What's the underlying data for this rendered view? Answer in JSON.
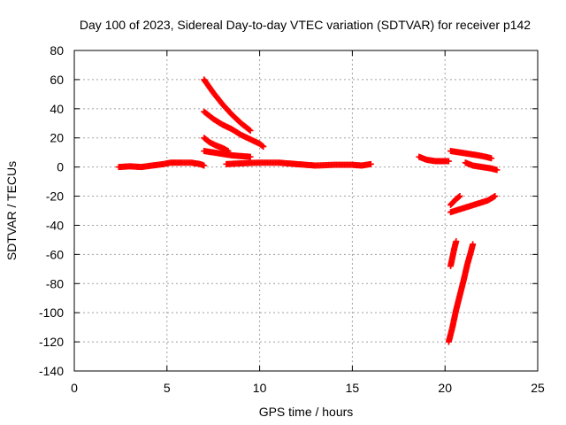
{
  "chart_data": {
    "type": "scatter",
    "title": "Day 100 of 2023, Sidereal Day-to-day VTEC variation (SDTVAR) for receiver p142",
    "xlabel": "GPS time / hours",
    "ylabel": "SDTVAR / TECUs",
    "xlim": [
      0,
      25
    ],
    "ylim": [
      -140,
      80
    ],
    "xticks": [
      0,
      5,
      10,
      15,
      20,
      25
    ],
    "yticks": [
      -140,
      -120,
      -100,
      -80,
      -60,
      -40,
      -20,
      0,
      20,
      40,
      60,
      80
    ],
    "grid": true,
    "legend": "none",
    "marker": "plus",
    "color": "#ff0000",
    "series": [
      {
        "points": [
          [
            2.4,
            0
          ],
          [
            3.0,
            0.5
          ],
          [
            3.6,
            0
          ],
          [
            4.2,
            1
          ],
          [
            4.8,
            2
          ],
          [
            5.2,
            3
          ],
          [
            5.8,
            3
          ],
          [
            6.3,
            3
          ],
          [
            6.8,
            2
          ],
          [
            7.0,
            1
          ]
        ]
      },
      {
        "points": [
          [
            7.0,
            60
          ],
          [
            7.5,
            51
          ],
          [
            8.0,
            43
          ],
          [
            8.5,
            36
          ],
          [
            9.0,
            30
          ],
          [
            9.5,
            25
          ]
        ]
      },
      {
        "points": [
          [
            7.0,
            38
          ],
          [
            7.5,
            33
          ],
          [
            8.0,
            29
          ],
          [
            8.5,
            26
          ],
          [
            9.0,
            22
          ],
          [
            9.5,
            19
          ],
          [
            10.0,
            16
          ],
          [
            10.2,
            14
          ]
        ]
      },
      {
        "points": [
          [
            7.0,
            20
          ],
          [
            7.3,
            17
          ],
          [
            7.6,
            15
          ],
          [
            8.0,
            13
          ],
          [
            8.3,
            11
          ]
        ]
      },
      {
        "points": [
          [
            7.0,
            11
          ],
          [
            7.5,
            10
          ],
          [
            8.0,
            9
          ],
          [
            8.5,
            8
          ],
          [
            9.0,
            7.5
          ],
          [
            9.5,
            7
          ]
        ]
      },
      {
        "points": [
          [
            8.2,
            2
          ],
          [
            9.0,
            2.5
          ],
          [
            10.0,
            3
          ],
          [
            11.0,
            3
          ],
          [
            12.0,
            2
          ],
          [
            13.0,
            1
          ],
          [
            14.0,
            1.5
          ],
          [
            15.0,
            1.5
          ],
          [
            15.5,
            1
          ],
          [
            16.0,
            2
          ]
        ]
      },
      {
        "points": [
          [
            18.6,
            7
          ],
          [
            19.0,
            5
          ],
          [
            19.5,
            4
          ],
          [
            20.0,
            4
          ],
          [
            20.2,
            4
          ]
        ]
      },
      {
        "points": [
          [
            20.3,
            11
          ],
          [
            20.8,
            10
          ],
          [
            21.3,
            9
          ],
          [
            21.8,
            8
          ],
          [
            22.2,
            7
          ],
          [
            22.5,
            6
          ]
        ]
      },
      {
        "points": [
          [
            21.1,
            3
          ],
          [
            21.5,
            1
          ],
          [
            22.0,
            0
          ],
          [
            22.5,
            -1
          ],
          [
            22.8,
            -2
          ]
        ]
      },
      {
        "points": [
          [
            20.3,
            -26
          ],
          [
            20.6,
            -22
          ],
          [
            20.8,
            -20
          ]
        ]
      },
      {
        "points": [
          [
            20.3,
            -31
          ],
          [
            20.8,
            -29
          ],
          [
            21.3,
            -27
          ],
          [
            21.8,
            -25
          ],
          [
            22.3,
            -23
          ],
          [
            22.7,
            -20
          ]
        ]
      },
      {
        "points": [
          [
            20.3,
            -68
          ],
          [
            20.4,
            -62
          ],
          [
            20.5,
            -56
          ],
          [
            20.6,
            -51
          ]
        ]
      },
      {
        "points": [
          [
            20.2,
            -120
          ],
          [
            20.4,
            -110
          ],
          [
            20.6,
            -98
          ],
          [
            20.8,
            -88
          ],
          [
            21.0,
            -78
          ],
          [
            21.2,
            -67
          ],
          [
            21.4,
            -58
          ],
          [
            21.5,
            -53
          ]
        ]
      }
    ]
  }
}
